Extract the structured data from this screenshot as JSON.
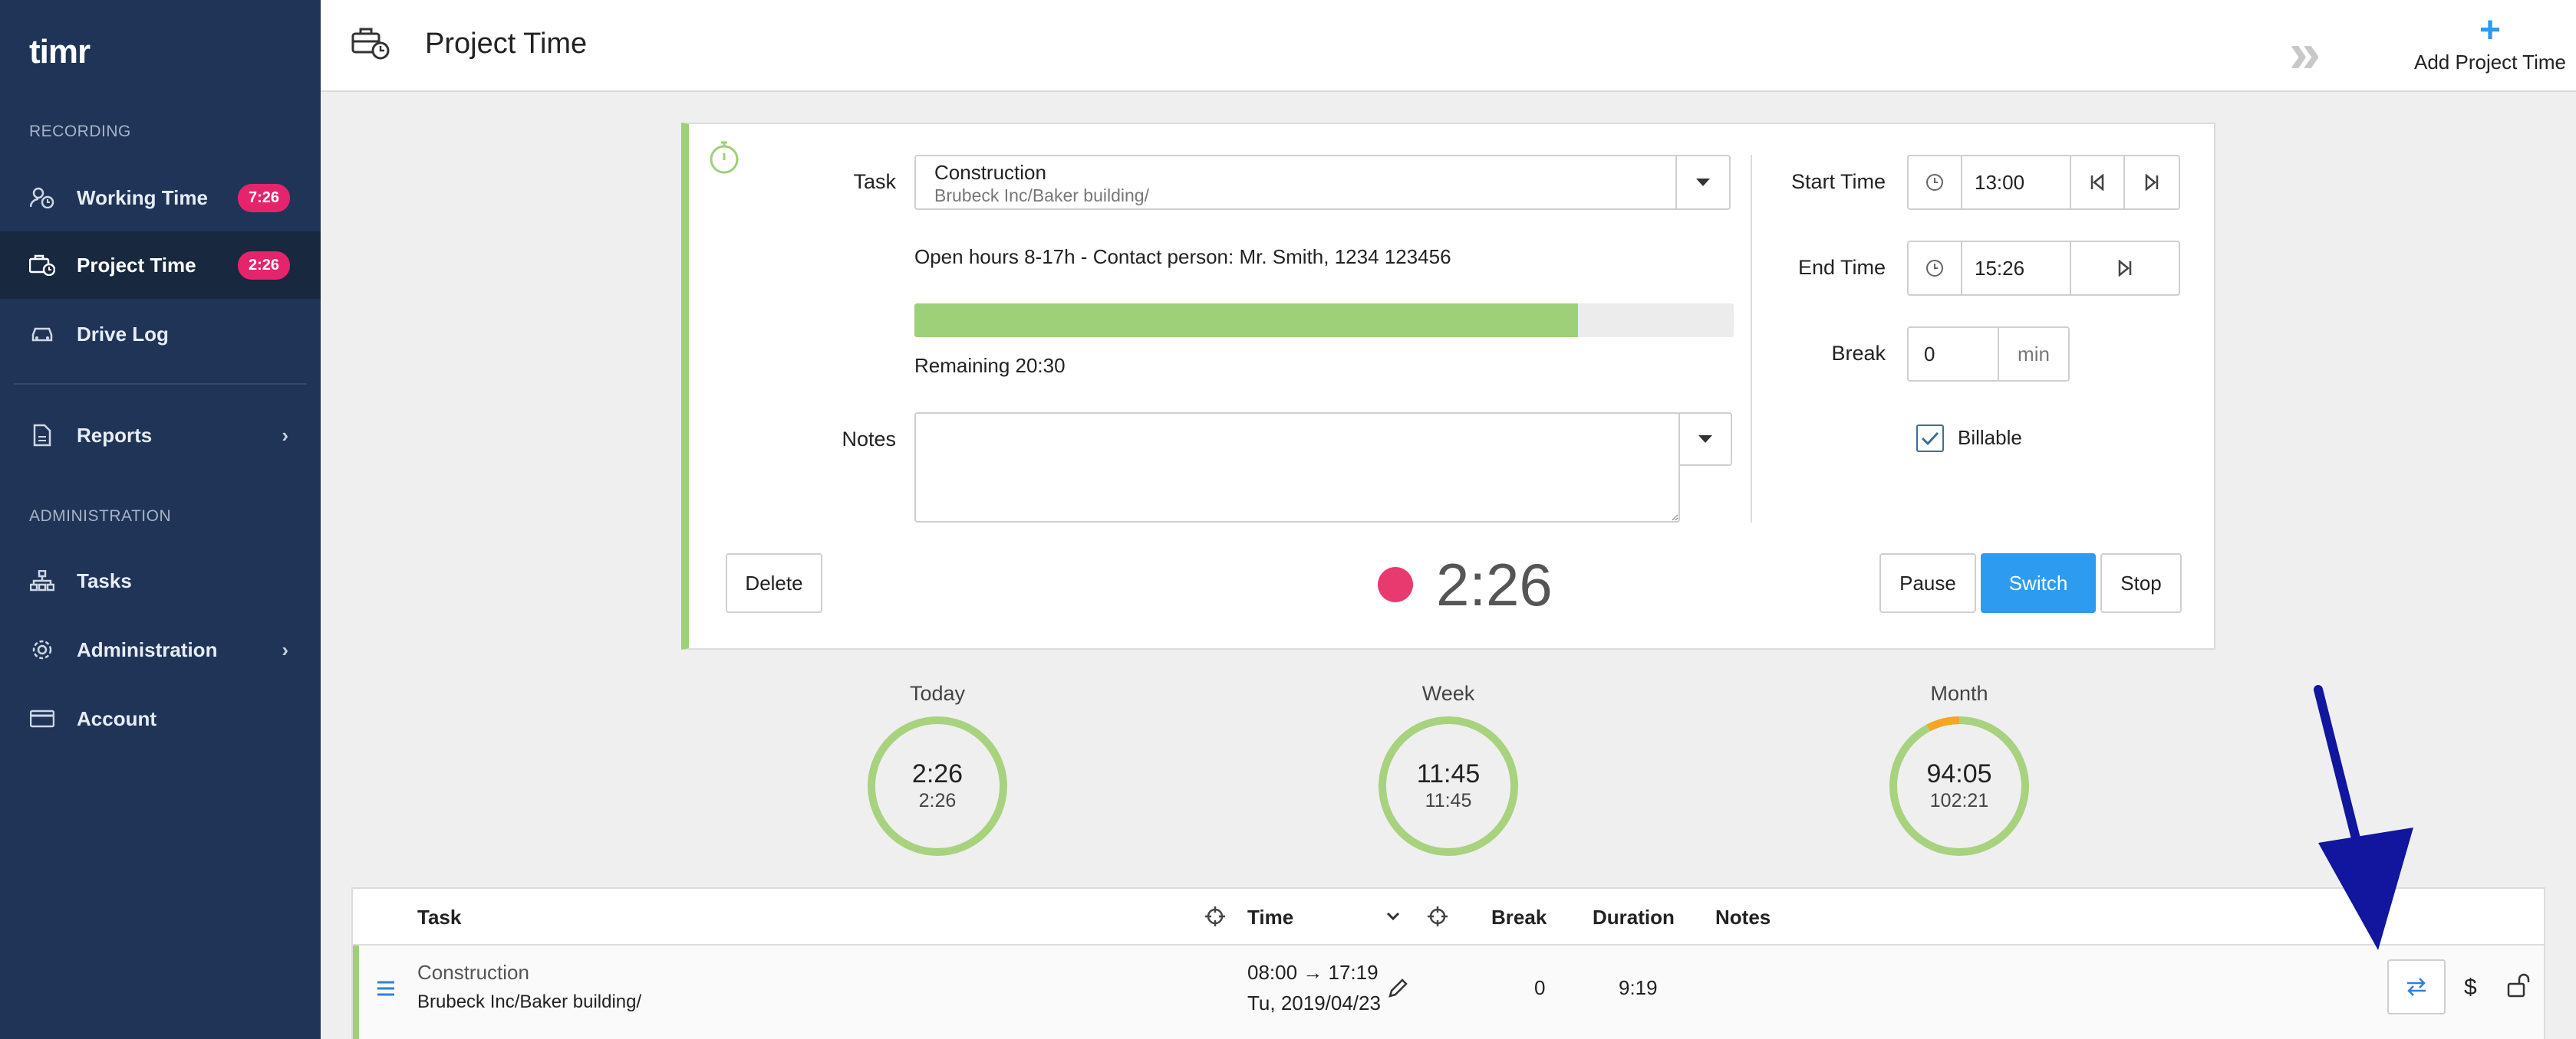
{
  "app": {
    "logo": "timr"
  },
  "sidebar": {
    "recording_label": "RECORDING",
    "administration_label": "ADMINISTRATION",
    "items": [
      {
        "label": "Working Time",
        "badge": "7:26",
        "icon": "user-clock-icon"
      },
      {
        "label": "Project Time",
        "badge": "2:26",
        "icon": "briefcase-clock-icon",
        "active": true
      },
      {
        "label": "Drive Log",
        "icon": "car-icon"
      },
      {
        "label": "Reports",
        "icon": "report-icon",
        "chevron": "›"
      },
      {
        "label": "Tasks",
        "icon": "hierarchy-icon"
      },
      {
        "label": "Administration",
        "icon": "gear-icon",
        "chevron": "›"
      },
      {
        "label": "Account",
        "icon": "credit-card-icon"
      }
    ]
  },
  "header": {
    "title": "Project Time",
    "add_label": "Add Project Time",
    "add_icon": "+",
    "forward_icon": "»"
  },
  "form": {
    "task_label": "Task",
    "task_name": "Construction",
    "task_path": "Brubeck Inc/Baker building/",
    "info": "Open hours 8-17h - Contact person: Mr. Smith, 1234 123456",
    "progress_fraction": 0.81,
    "remaining": "Remaining 20:30",
    "notes_label": "Notes",
    "notes_value": "",
    "start_label": "Start Time",
    "start_value": "13:00",
    "end_label": "End Time",
    "end_value": "15:26",
    "break_label": "Break",
    "break_value": "0",
    "break_unit": "min",
    "billable_label": "Billable",
    "billable_checked": true,
    "delete_label": "Delete",
    "timer": "2:26",
    "pause_label": "Pause",
    "switch_label": "Switch",
    "stop_label": "Stop"
  },
  "summary": [
    {
      "title": "Today",
      "value": "2:26",
      "sub": "2:26"
    },
    {
      "title": "Week",
      "value": "11:45",
      "sub": "11:45"
    },
    {
      "title": "Month",
      "value": "94:05",
      "sub": "102:21"
    }
  ],
  "table": {
    "headers": {
      "task": "Task",
      "time": "Time",
      "break": "Break",
      "duration": "Duration",
      "notes": "Notes"
    },
    "rows": [
      {
        "task_name": "Construction",
        "task_path": "Brubeck Inc/Baker building/",
        "time_range": "08:00 → 17:19",
        "date": "Tu, 2019/04/23",
        "break": "0",
        "duration": "9:19",
        "notes": "",
        "currency_symbol": "$"
      }
    ]
  },
  "colors": {
    "sidebar": "#1f3457",
    "accent": "#2d9cf0",
    "badge": "#e5246b",
    "green": "#9ed07a",
    "orange": "#f5a623",
    "annotation_arrow": "#12169e"
  }
}
